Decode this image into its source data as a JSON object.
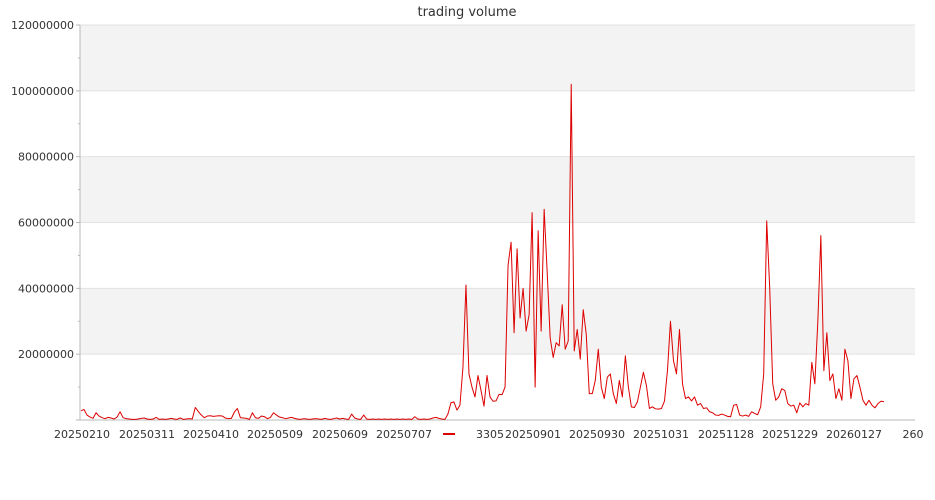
{
  "chart_data": {
    "type": "line",
    "title": "trading volume",
    "xlabel": "",
    "ylabel": "",
    "ylim": [
      0,
      120000000
    ],
    "y_ticks": [
      0,
      20000000,
      40000000,
      60000000,
      80000000,
      100000000,
      120000000
    ],
    "y_tick_labels": [
      "20000000",
      "40000000",
      "60000000",
      "80000000",
      "100000000",
      "120000000"
    ],
    "x_tick_labels": [
      "20250210",
      "20250311",
      "20250410",
      "20250509",
      "20250609",
      "20250707",
      "20250901",
      "20250930",
      "20251031",
      "20251128",
      "20251229",
      "20260127",
      "260"
    ],
    "grid": true,
    "legend_position": "bottom-center",
    "series": [
      {
        "name": "3305",
        "color": "#dd0000",
        "values": [
          2800000,
          3200000,
          1500000,
          900000,
          500000,
          2200000,
          1200000,
          700000,
          400000,
          800000,
          600000,
          300000,
          900000,
          2500000,
          700000,
          400000,
          300000,
          200000,
          200000,
          300000,
          500000,
          600000,
          300000,
          200000,
          300000,
          800000,
          200000,
          300000,
          200000,
          300000,
          500000,
          300000,
          200000,
          600000,
          200000,
          300000,
          400000,
          300000,
          3800000,
          2600000,
          1500000,
          700000,
          1200000,
          1300000,
          1100000,
          1200000,
          1300000,
          1200000,
          600000,
          400000,
          500000,
          2400000,
          3500000,
          700000,
          600000,
          500000,
          200000,
          2200000,
          700000,
          500000,
          1200000,
          1000000,
          400000,
          800000,
          2200000,
          1500000,
          900000,
          700000,
          400000,
          600000,
          800000,
          500000,
          300000,
          200000,
          400000,
          300000,
          200000,
          300000,
          400000,
          300000,
          200000,
          500000,
          300000,
          200000,
          400000,
          600000,
          300000,
          500000,
          300000,
          200000,
          1800000,
          600000,
          300000,
          200000,
          1500000,
          300000,
          200000,
          300000,
          200000,
          300000,
          200000,
          300000,
          200000,
          300000,
          200000,
          300000,
          200000,
          300000,
          200000,
          300000,
          200000,
          1000000,
          300000,
          200000,
          300000,
          200000,
          300000,
          600000,
          800000,
          500000,
          300000,
          200000,
          1800000,
          5200000,
          5500000,
          3000000,
          4500000,
          16000000,
          41000000,
          14000000,
          10000000,
          7000000,
          13500000,
          9000000,
          4200000,
          13500000,
          7000000,
          5700000,
          5800000,
          7800000,
          7700000,
          10000000,
          47000000,
          54000000,
          26500000,
          52000000,
          31000000,
          40000000,
          27000000,
          32000000,
          63000000,
          10000000,
          57500000,
          27000000,
          64000000,
          45000000,
          25000000,
          19000000,
          23500000,
          22500000,
          35000000,
          21500000,
          24000000,
          102000000,
          21000000,
          27500000,
          18500000,
          33500000,
          26000000,
          8000000,
          8000000,
          12000000,
          21500000,
          10000000,
          6500000,
          13000000,
          14000000,
          8000000,
          5000000,
          12000000,
          7000000,
          19500000,
          10000000,
          4000000,
          3800000,
          5500000,
          10000000,
          14500000,
          10500000,
          3500000,
          4000000,
          3400000,
          3300000,
          3500000,
          5700000,
          15000000,
          30000000,
          18000000,
          14000000,
          27500000,
          11000000,
          6500000,
          7000000,
          5800000,
          7000000,
          4500000,
          5000000,
          3500000,
          3700000,
          2500000,
          2200000,
          1500000,
          1400000,
          1800000,
          1500000,
          1100000,
          1000000,
          4500000,
          4700000,
          1500000,
          1200000,
          1500000,
          1100000,
          2500000,
          2000000,
          1600000,
          4000000,
          14000000,
          60500000,
          40000000,
          11000000,
          6000000,
          7000000,
          9500000,
          9000000,
          5000000,
          4200000,
          4500000,
          2200000,
          5200000,
          4000000,
          5000000,
          4500000,
          17500000,
          11000000,
          30000000,
          56000000,
          15000000,
          26500000,
          12000000,
          14000000,
          6500000,
          9500000,
          6000000,
          21500000,
          18000000,
          6500000,
          12500000,
          13500000,
          10000000,
          6000000,
          4500000,
          6000000,
          4500000,
          3700000,
          5000000,
          5700000,
          5600000
        ]
      }
    ]
  }
}
